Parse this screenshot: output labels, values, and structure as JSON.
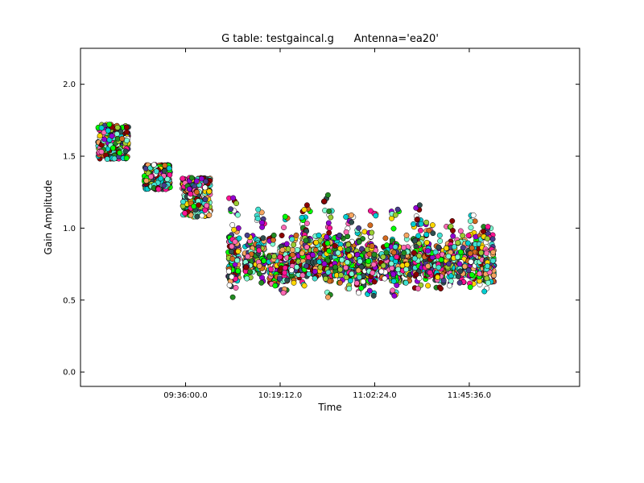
{
  "chart_data": {
    "type": "scatter",
    "title": "G table: testgaincal.g      Antenna='ea20'",
    "xlabel": "Time",
    "ylabel": "Gain Amplitude",
    "ylim": [
      -0.1,
      2.25
    ],
    "xlim_seconds_of_day": [
      31680,
      45360
    ],
    "y_ticks": [
      "0.0",
      "0.5",
      "1.0",
      "1.5",
      "2.0"
    ],
    "y_tick_values": [
      0.0,
      0.5,
      1.0,
      1.5,
      2.0
    ],
    "x_ticks": [
      "09:36:00.0",
      "10:19:12.0",
      "11:02:24.0",
      "11:45:36.0"
    ],
    "x_tick_values": [
      34560,
      37152,
      39744,
      42336
    ],
    "grid": false,
    "marker_colors": [
      "#2f4f4f",
      "#40e0d0",
      "#ff1493",
      "#9400d3",
      "#f4a460",
      "#8b0000",
      "#9acd32",
      "#ffd700",
      "#228b22",
      "#00ced1",
      "#7fffd4",
      "#483d8b",
      "#d2691e",
      "#00ff00",
      "#ffffff",
      "#ff69b4"
    ],
    "clusters": [
      {
        "t": 32580,
        "y_min": 1.48,
        "y_max": 1.72,
        "width": 840
      },
      {
        "t": 33780,
        "y_min": 1.27,
        "y_max": 1.44,
        "width": 720
      },
      {
        "t": 34860,
        "y_min": 1.08,
        "y_max": 1.35,
        "width": 780
      },
      {
        "t": 35880,
        "y_min": 0.52,
        "y_max": 1.21,
        "width": 300
      },
      {
        "t": 36300,
        "y_min": 0.65,
        "y_max": 0.95,
        "width": 240
      },
      {
        "t": 36600,
        "y_min": 0.62,
        "y_max": 1.13,
        "width": 240
      },
      {
        "t": 36960,
        "y_min": 0.6,
        "y_max": 0.95,
        "width": 240
      },
      {
        "t": 37260,
        "y_min": 0.55,
        "y_max": 1.08,
        "width": 240
      },
      {
        "t": 37560,
        "y_min": 0.62,
        "y_max": 0.95,
        "width": 240
      },
      {
        "t": 37860,
        "y_min": 0.6,
        "y_max": 1.16,
        "width": 240
      },
      {
        "t": 38160,
        "y_min": 0.65,
        "y_max": 0.95,
        "width": 240
      },
      {
        "t": 38460,
        "y_min": 0.52,
        "y_max": 1.23,
        "width": 240
      },
      {
        "t": 38760,
        "y_min": 0.62,
        "y_max": 0.95,
        "width": 240
      },
      {
        "t": 39060,
        "y_min": 0.58,
        "y_max": 1.09,
        "width": 240
      },
      {
        "t": 39360,
        "y_min": 0.55,
        "y_max": 1.0,
        "width": 240
      },
      {
        "t": 39660,
        "y_min": 0.53,
        "y_max": 1.12,
        "width": 240
      },
      {
        "t": 40020,
        "y_min": 0.65,
        "y_max": 0.93,
        "width": 240
      },
      {
        "t": 40320,
        "y_min": 0.53,
        "y_max": 1.13,
        "width": 240
      },
      {
        "t": 40620,
        "y_min": 0.62,
        "y_max": 0.95,
        "width": 240
      },
      {
        "t": 40920,
        "y_min": 0.58,
        "y_max": 1.16,
        "width": 240
      },
      {
        "t": 41220,
        "y_min": 0.6,
        "y_max": 1.04,
        "width": 240
      },
      {
        "t": 41520,
        "y_min": 0.58,
        "y_max": 0.95,
        "width": 240
      },
      {
        "t": 41820,
        "y_min": 0.6,
        "y_max": 1.05,
        "width": 240
      },
      {
        "t": 42120,
        "y_min": 0.62,
        "y_max": 0.98,
        "width": 240
      },
      {
        "t": 42420,
        "y_min": 0.59,
        "y_max": 1.09,
        "width": 240
      },
      {
        "t": 42720,
        "y_min": 0.56,
        "y_max": 1.01,
        "width": 240
      },
      {
        "t": 42900,
        "y_min": 0.62,
        "y_max": 1.01,
        "width": 240
      }
    ]
  }
}
